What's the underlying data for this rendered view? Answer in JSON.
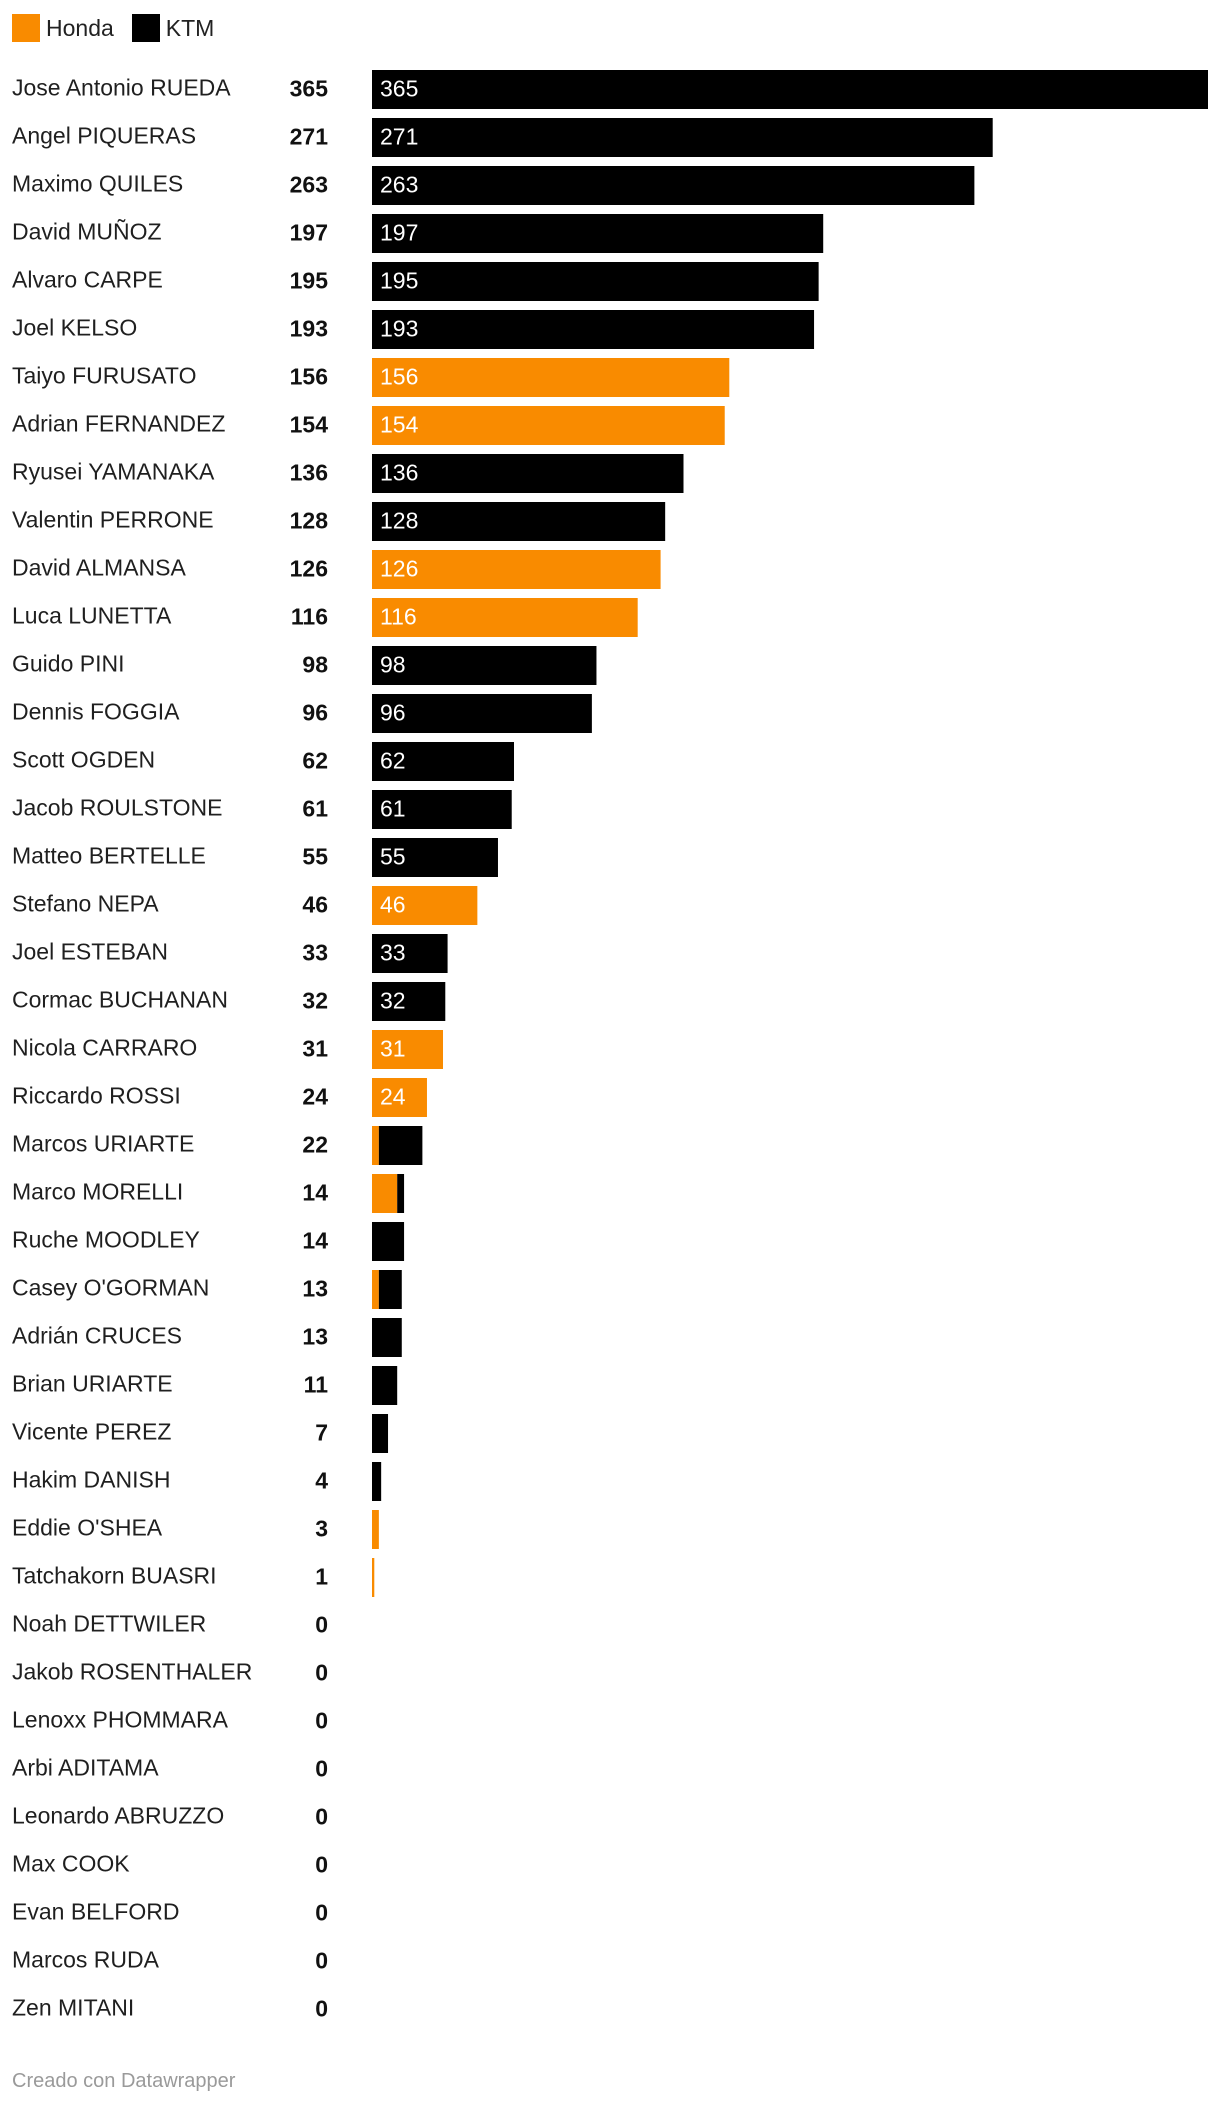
{
  "legend": [
    {
      "label": "Honda",
      "color": "#f98b00"
    },
    {
      "label": "KTM",
      "color": "#000000"
    }
  ],
  "footer": {
    "text": "Creado con Datawrapper"
  },
  "chart_data": {
    "type": "bar",
    "orientation": "horizontal",
    "stacked": true,
    "xlim": [
      0,
      365
    ],
    "grid": false,
    "legend_position": "top-left",
    "colors": {
      "Honda": "#f98b00",
      "KTM": "#000000"
    },
    "categories": [
      "Jose Antonio RUEDA",
      "Angel PIQUERAS",
      "Maximo QUILES",
      "David MUÑOZ",
      "Alvaro CARPE",
      "Joel KELSO",
      "Taiyo FURUSATO",
      "Adrian FERNANDEZ",
      "Ryusei YAMANAKA",
      "Valentin PERRONE",
      "David ALMANSA",
      "Luca LUNETTA",
      "Guido PINI",
      "Dennis FOGGIA",
      "Scott OGDEN",
      "Jacob ROULSTONE",
      "Matteo BERTELLE",
      "Stefano NEPA",
      "Joel ESTEBAN",
      "Cormac BUCHANAN",
      "Nicola CARRARO",
      "Riccardo ROSSI",
      "Marcos URIARTE",
      "Marco MORELLI",
      "Ruche MOODLEY",
      "Casey O'GORMAN",
      "Adrián CRUCES",
      "Brian URIARTE",
      "Vicente PEREZ",
      "Hakim DANISH",
      "Eddie O'SHEA",
      "Tatchakorn BUASRI",
      "Noah DETTWILER",
      "Jakob ROSENTHALER",
      "Lenoxx PHOMMARA",
      "Arbi ADITAMA",
      "Leonardo ABRUZZO",
      "Max COOK",
      "Evan BELFORD",
      "Marcos RUDA",
      "Zen MITANI"
    ],
    "totals": [
      365,
      271,
      263,
      197,
      195,
      193,
      156,
      154,
      136,
      128,
      126,
      116,
      98,
      96,
      62,
      61,
      55,
      46,
      33,
      32,
      31,
      24,
      22,
      14,
      14,
      13,
      13,
      11,
      7,
      4,
      3,
      1,
      0,
      0,
      0,
      0,
      0,
      0,
      0,
      0,
      0
    ],
    "series": [
      {
        "name": "Honda",
        "values": [
          0,
          0,
          0,
          0,
          0,
          0,
          156,
          154,
          0,
          0,
          126,
          116,
          0,
          0,
          0,
          0,
          0,
          46,
          0,
          0,
          31,
          24,
          3,
          11,
          0,
          3,
          0,
          0,
          0,
          0,
          3,
          1,
          0,
          0,
          0,
          0,
          0,
          0,
          0,
          0,
          0
        ]
      },
      {
        "name": "KTM",
        "values": [
          365,
          271,
          263,
          197,
          195,
          193,
          0,
          0,
          136,
          128,
          0,
          0,
          98,
          96,
          62,
          61,
          55,
          0,
          33,
          32,
          0,
          0,
          19,
          3,
          14,
          10,
          13,
          11,
          7,
          4,
          0,
          0,
          0,
          0,
          0,
          0,
          0,
          0,
          0,
          0,
          0
        ]
      }
    ]
  }
}
